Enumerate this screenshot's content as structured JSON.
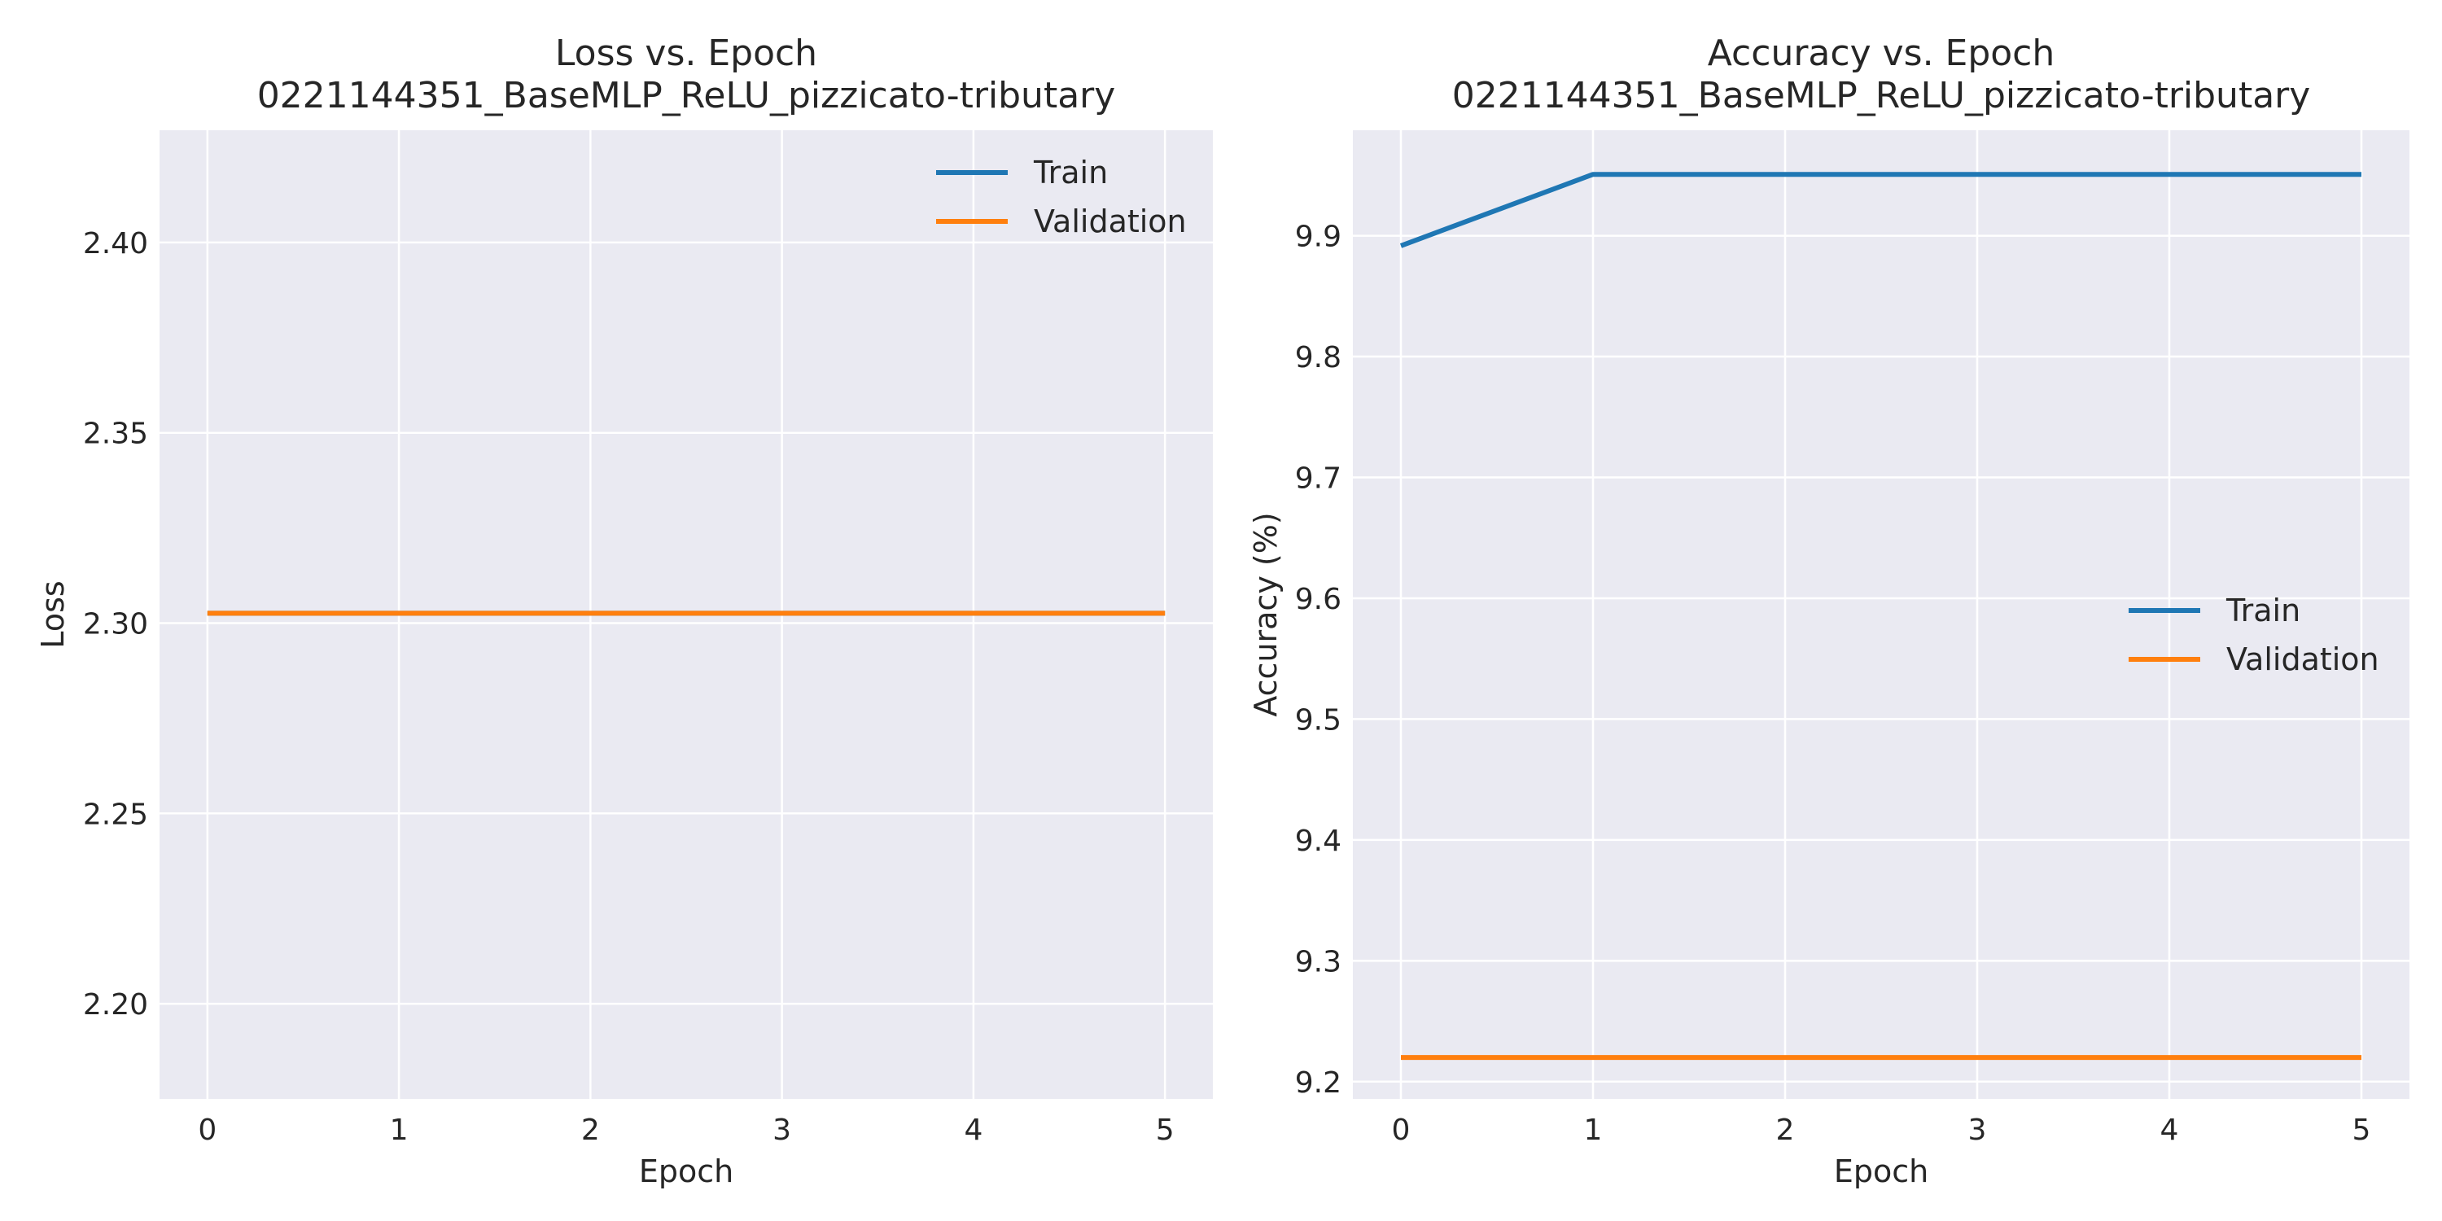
{
  "chart_data": [
    {
      "type": "line",
      "title": "Loss vs. Epoch",
      "subtitle": "0221144351_BaseMLP_ReLU_pizzicato-tributary",
      "xlabel": "Epoch",
      "ylabel": "Loss",
      "x": [
        0,
        1,
        2,
        3,
        4,
        5
      ],
      "xlim": [
        -0.25,
        5.25
      ],
      "ylim": [
        2.175,
        2.4295
      ],
      "xticks": [
        0,
        1,
        2,
        3,
        4,
        5
      ],
      "yticks": [
        2.2,
        2.25,
        2.3,
        2.35,
        2.4
      ],
      "ytick_labels": [
        "2.20",
        "2.25",
        "2.30",
        "2.35",
        "2.40"
      ],
      "grid": true,
      "legend_position": "top-right",
      "series": [
        {
          "name": "Train",
          "color": "#1f77b4",
          "values": [
            2.3026,
            2.3026,
            2.3026,
            2.3026,
            2.3026,
            2.3026
          ]
        },
        {
          "name": "Validation",
          "color": "#ff7f0e",
          "values": [
            2.3026,
            2.3026,
            2.3026,
            2.3026,
            2.3026,
            2.3026
          ]
        }
      ]
    },
    {
      "type": "line",
      "title": "Accuracy vs. Epoch",
      "subtitle": "0221144351_BaseMLP_ReLU_pizzicato-tributary",
      "xlabel": "Epoch",
      "ylabel": "Accuracy (%)",
      "x": [
        0,
        1,
        2,
        3,
        4,
        5
      ],
      "xlim": [
        -0.25,
        5.25
      ],
      "ylim": [
        9.1857,
        9.9873
      ],
      "xticks": [
        0,
        1,
        2,
        3,
        4,
        5
      ],
      "yticks": [
        9.2,
        9.3,
        9.4,
        9.5,
        9.6,
        9.7,
        9.8,
        9.9
      ],
      "ytick_labels": [
        "9.2",
        "9.3",
        "9.4",
        "9.5",
        "9.6",
        "9.7",
        "9.8",
        "9.9"
      ],
      "grid": true,
      "legend_position": "center-right",
      "series": [
        {
          "name": "Train",
          "color": "#1f77b4",
          "values": [
            9.8917,
            9.9508,
            9.9508,
            9.9508,
            9.9508,
            9.9508
          ]
        },
        {
          "name": "Validation",
          "color": "#ff7f0e",
          "values": [
            9.22,
            9.22,
            9.22,
            9.22,
            9.22,
            9.22
          ]
        }
      ]
    }
  ],
  "style": {
    "axes_background": "#eaeaf2",
    "grid_color": "#ffffff",
    "text_color": "#262626"
  }
}
